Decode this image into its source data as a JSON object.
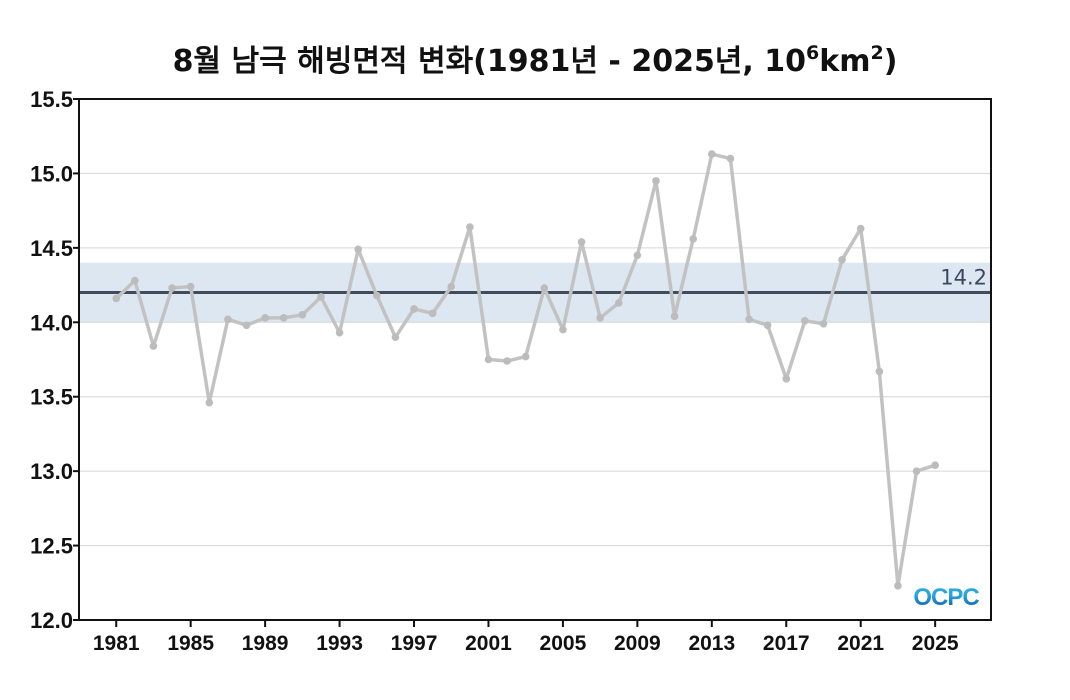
{
  "title": {
    "main": "8월 남극 해빙면적 변화(1981년 - 2025년, 10",
    "sup1": "6",
    "mid": "km",
    "sup2": "2",
    "end": ")"
  },
  "logo_text": "OCPC",
  "colors": {
    "line": "#c2c2c2",
    "marker": "#bcbcbc",
    "reference_line": "#414b5b",
    "reference_band": "#dde7f1",
    "reference_label": "#3b4860",
    "grid": "#d6d6d6",
    "axis": "#111111",
    "logo_dark": "#0b4ea2",
    "logo_light": "#2aa7e0"
  },
  "chart_data": {
    "type": "line",
    "title": "8월 남극 해빙면적 변화(1981년 - 2025년, 10⁶km²)",
    "xlabel": "",
    "ylabel": "",
    "xlim": [
      1979,
      2028
    ],
    "ylim": [
      12.0,
      15.5
    ],
    "yticks": [
      12.0,
      12.5,
      13.0,
      13.5,
      14.0,
      14.5,
      15.0,
      15.5
    ],
    "ytick_labels": [
      "12.0",
      "12.5",
      "13.0",
      "13.5",
      "14.0",
      "14.5",
      "15.0",
      "15.5"
    ],
    "xticks": [
      1981,
      1985,
      1989,
      1993,
      1997,
      2001,
      2005,
      2009,
      2013,
      2017,
      2021,
      2025
    ],
    "xtick_labels": [
      "1981",
      "1985",
      "1989",
      "1993",
      "1997",
      "2001",
      "2005",
      "2009",
      "2013",
      "2017",
      "2021",
      "2025"
    ],
    "grid": "horizontal",
    "x": [
      1981,
      1982,
      1983,
      1984,
      1985,
      1986,
      1987,
      1988,
      1989,
      1990,
      1991,
      1992,
      1993,
      1994,
      1995,
      1996,
      1997,
      1998,
      1999,
      2000,
      2001,
      2002,
      2003,
      2004,
      2005,
      2006,
      2007,
      2008,
      2009,
      2010,
      2011,
      2012,
      2013,
      2014,
      2015,
      2016,
      2017,
      2018,
      2019,
      2020,
      2021,
      2022,
      2023,
      2024,
      2025
    ],
    "series": [
      {
        "values": [
          14.16,
          14.28,
          13.84,
          14.23,
          14.24,
          13.46,
          14.02,
          13.98,
          14.03,
          14.03,
          14.05,
          14.17,
          13.93,
          14.49,
          14.18,
          13.9,
          14.09,
          14.06,
          14.24,
          14.64,
          13.75,
          13.74,
          13.77,
          14.23,
          13.95,
          14.54,
          14.03,
          14.13,
          14.45,
          14.95,
          14.04,
          14.56,
          15.13,
          15.1,
          14.02,
          13.98,
          13.62,
          14.01,
          13.99,
          14.42,
          14.63,
          13.67,
          12.23,
          13.0,
          13.04
        ]
      }
    ],
    "reference": {
      "value": 14.2,
      "label": "14.2",
      "band": [
        14.0,
        14.4
      ]
    }
  }
}
